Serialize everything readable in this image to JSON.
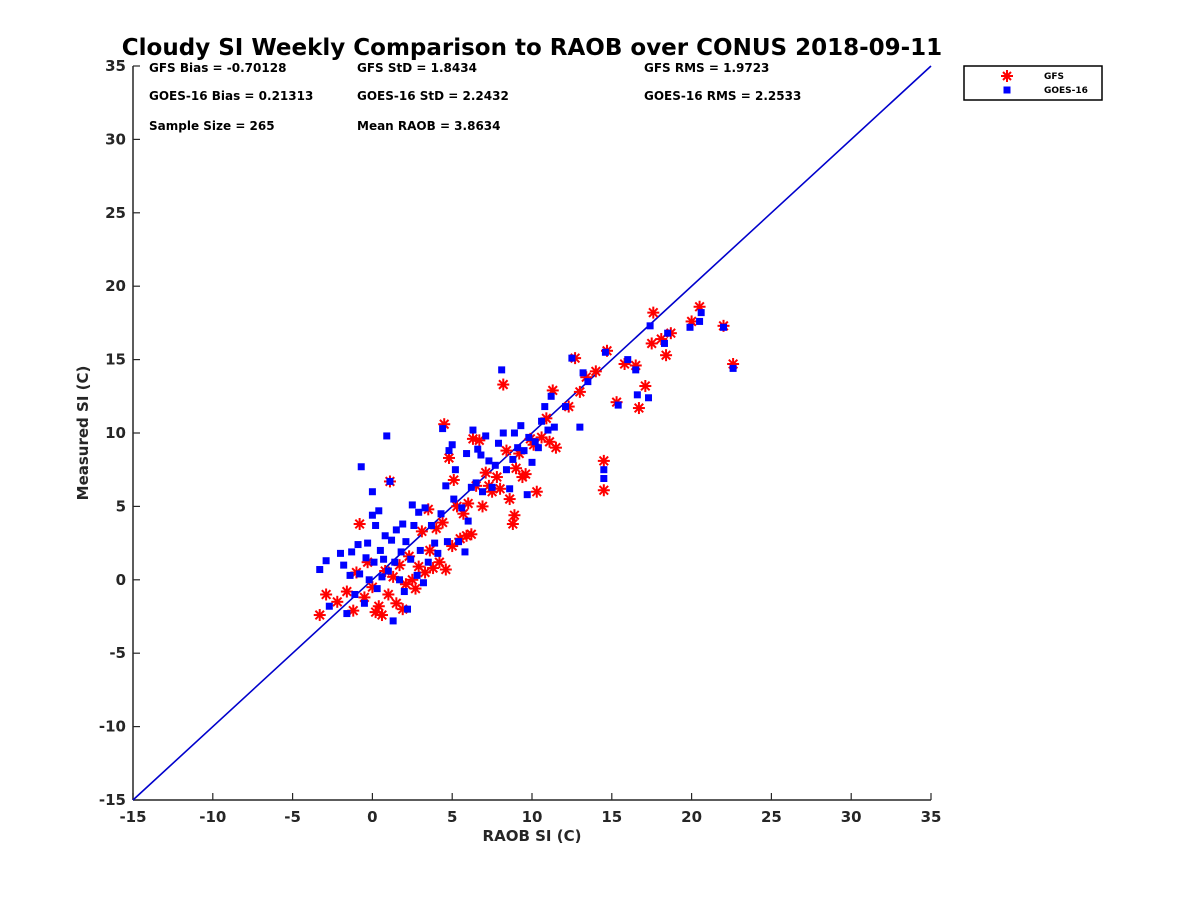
{
  "chart_data": {
    "type": "scatter",
    "title": "Cloudy SI Weekly Comparison to RAOB over CONUS 2018-09-11",
    "xlabel": "RAOB SI (C)",
    "ylabel": "Measured SI (C)",
    "xlim": [
      -15,
      35
    ],
    "ylim": [
      -15,
      35
    ],
    "x_ticks": [
      -15,
      -10,
      -5,
      0,
      5,
      10,
      15,
      20,
      25,
      30,
      35
    ],
    "y_ticks": [
      -15,
      -10,
      -5,
      0,
      5,
      10,
      15,
      20,
      25,
      30,
      35
    ],
    "x_tick_labels": [
      "-15",
      "-10",
      "-5",
      "0",
      "5",
      "10",
      "15",
      "20",
      "25",
      "30",
      "35"
    ],
    "y_tick_labels": [
      "-15",
      "-10",
      "-5",
      "0",
      "5",
      "10",
      "15",
      "20",
      "25",
      "30",
      "35"
    ],
    "grid": false,
    "legend_position": "top-right outside",
    "reference_line": {
      "name": "1:1 line",
      "x": [
        -15,
        35
      ],
      "y": [
        -15,
        35
      ],
      "color": "#0000cc"
    },
    "stats": {
      "gfs_bias": "GFS Bias = -0.70128",
      "gfs_std": "GFS StD = 1.8434",
      "gfs_rms": "GFS RMS = 1.9723",
      "goes_bias": "GOES-16 Bias = 0.21313",
      "goes_std": "GOES-16 StD = 2.2432",
      "goes_rms": "GOES-16 RMS = 2.2533",
      "sample_size": "Sample Size = 265",
      "mean_raob": "Mean RAOB = 3.8634"
    },
    "series": [
      {
        "name": "GFS",
        "marker": "asterisk",
        "color": "#ff0000",
        "points": [
          [
            -3.3,
            -2.4
          ],
          [
            -2.9,
            -1.0
          ],
          [
            -2.2,
            -1.5
          ],
          [
            -1.6,
            -0.8
          ],
          [
            -1.2,
            -2.1
          ],
          [
            -1.0,
            0.5
          ],
          [
            -0.8,
            3.8
          ],
          [
            -0.5,
            -1.2
          ],
          [
            -0.3,
            1.2
          ],
          [
            0.0,
            -0.5
          ],
          [
            0.2,
            -2.2
          ],
          [
            0.4,
            -1.8
          ],
          [
            0.6,
            -2.4
          ],
          [
            0.8,
            0.6
          ],
          [
            1.0,
            -1.0
          ],
          [
            1.1,
            6.7
          ],
          [
            1.3,
            0.2
          ],
          [
            1.5,
            -1.6
          ],
          [
            1.7,
            1.0
          ],
          [
            1.9,
            -2.0
          ],
          [
            2.1,
            -0.3
          ],
          [
            2.3,
            1.6
          ],
          [
            2.5,
            0.0
          ],
          [
            2.7,
            -0.6
          ],
          [
            2.9,
            0.9
          ],
          [
            3.1,
            3.3
          ],
          [
            3.3,
            0.5
          ],
          [
            3.5,
            4.8
          ],
          [
            3.6,
            2.0
          ],
          [
            3.8,
            0.8
          ],
          [
            4.0,
            3.5
          ],
          [
            4.2,
            1.2
          ],
          [
            4.4,
            3.9
          ],
          [
            4.5,
            10.6
          ],
          [
            4.6,
            0.7
          ],
          [
            4.8,
            8.3
          ],
          [
            5.0,
            2.3
          ],
          [
            5.1,
            6.8
          ],
          [
            5.3,
            5.0
          ],
          [
            5.5,
            2.8
          ],
          [
            5.7,
            4.5
          ],
          [
            5.9,
            3.0
          ],
          [
            6.0,
            5.2
          ],
          [
            6.2,
            3.1
          ],
          [
            6.3,
            9.6
          ],
          [
            6.5,
            6.4
          ],
          [
            6.7,
            9.5
          ],
          [
            6.9,
            5.0
          ],
          [
            7.1,
            7.3
          ],
          [
            7.3,
            6.4
          ],
          [
            7.5,
            6.0
          ],
          [
            7.8,
            7.0
          ],
          [
            8.0,
            6.2
          ],
          [
            8.2,
            13.3
          ],
          [
            8.4,
            8.8
          ],
          [
            8.6,
            5.5
          ],
          [
            8.8,
            3.8
          ],
          [
            8.9,
            4.4
          ],
          [
            9.0,
            7.6
          ],
          [
            9.2,
            8.6
          ],
          [
            9.4,
            7.0
          ],
          [
            9.6,
            7.2
          ],
          [
            9.9,
            9.6
          ],
          [
            10.1,
            9.2
          ],
          [
            10.3,
            6.0
          ],
          [
            10.6,
            9.7
          ],
          [
            10.9,
            11.0
          ],
          [
            11.1,
            9.4
          ],
          [
            11.3,
            12.9
          ],
          [
            11.5,
            9.0
          ],
          [
            12.3,
            11.8
          ],
          [
            12.7,
            15.1
          ],
          [
            13.0,
            12.8
          ],
          [
            13.4,
            13.8
          ],
          [
            14.0,
            14.2
          ],
          [
            14.5,
            8.1
          ],
          [
            14.5,
            6.1
          ],
          [
            14.7,
            15.6
          ],
          [
            15.3,
            12.1
          ],
          [
            15.8,
            14.7
          ],
          [
            16.5,
            14.6
          ],
          [
            16.7,
            11.7
          ],
          [
            17.1,
            13.2
          ],
          [
            17.5,
            16.1
          ],
          [
            17.6,
            18.2
          ],
          [
            18.1,
            16.4
          ],
          [
            18.4,
            15.3
          ],
          [
            18.7,
            16.8
          ],
          [
            20.0,
            17.6
          ],
          [
            20.5,
            18.6
          ],
          [
            22.0,
            17.3
          ],
          [
            22.6,
            14.7
          ]
        ]
      },
      {
        "name": "GOES-16",
        "marker": "square",
        "color": "#0000ff",
        "points": [
          [
            -3.3,
            0.7
          ],
          [
            -2.9,
            1.3
          ],
          [
            -2.7,
            -1.8
          ],
          [
            -2.0,
            1.8
          ],
          [
            -1.8,
            1.0
          ],
          [
            -1.6,
            -2.3
          ],
          [
            -1.4,
            0.3
          ],
          [
            -1.3,
            1.9
          ],
          [
            -1.1,
            -1.0
          ],
          [
            -0.9,
            2.4
          ],
          [
            -0.8,
            0.4
          ],
          [
            -0.7,
            7.7
          ],
          [
            -0.5,
            -1.6
          ],
          [
            -0.4,
            1.5
          ],
          [
            -0.3,
            2.5
          ],
          [
            -0.2,
            0.0
          ],
          [
            0.0,
            4.4
          ],
          [
            0.0,
            6.0
          ],
          [
            0.1,
            1.2
          ],
          [
            0.2,
            3.7
          ],
          [
            0.3,
            -0.6
          ],
          [
            0.4,
            4.7
          ],
          [
            0.5,
            2.0
          ],
          [
            0.6,
            0.2
          ],
          [
            0.7,
            1.4
          ],
          [
            0.8,
            3.0
          ],
          [
            0.9,
            9.8
          ],
          [
            1.0,
            0.6
          ],
          [
            1.1,
            6.7
          ],
          [
            1.2,
            2.7
          ],
          [
            1.3,
            -2.8
          ],
          [
            1.4,
            1.2
          ],
          [
            1.5,
            3.4
          ],
          [
            1.7,
            0.0
          ],
          [
            1.8,
            1.9
          ],
          [
            1.9,
            3.8
          ],
          [
            2.0,
            -0.8
          ],
          [
            2.1,
            2.6
          ],
          [
            2.2,
            -2.0
          ],
          [
            2.4,
            1.4
          ],
          [
            2.5,
            5.1
          ],
          [
            2.6,
            3.7
          ],
          [
            2.8,
            0.3
          ],
          [
            2.9,
            4.6
          ],
          [
            3.0,
            2.0
          ],
          [
            3.2,
            -0.2
          ],
          [
            3.3,
            4.9
          ],
          [
            3.5,
            1.2
          ],
          [
            3.7,
            3.7
          ],
          [
            3.9,
            2.5
          ],
          [
            4.1,
            1.8
          ],
          [
            4.3,
            4.5
          ],
          [
            4.4,
            10.3
          ],
          [
            4.6,
            6.4
          ],
          [
            4.7,
            2.6
          ],
          [
            4.8,
            8.8
          ],
          [
            5.0,
            9.2
          ],
          [
            5.1,
            5.5
          ],
          [
            5.2,
            7.5
          ],
          [
            5.4,
            2.6
          ],
          [
            5.6,
            4.9
          ],
          [
            5.8,
            1.9
          ],
          [
            5.9,
            8.6
          ],
          [
            6.0,
            4.0
          ],
          [
            6.2,
            6.3
          ],
          [
            6.3,
            10.2
          ],
          [
            6.5,
            6.6
          ],
          [
            6.6,
            8.9
          ],
          [
            6.8,
            8.5
          ],
          [
            6.9,
            6.0
          ],
          [
            7.1,
            9.8
          ],
          [
            7.3,
            8.1
          ],
          [
            7.5,
            6.3
          ],
          [
            7.7,
            7.8
          ],
          [
            7.9,
            9.3
          ],
          [
            8.1,
            14.3
          ],
          [
            8.2,
            10.0
          ],
          [
            8.4,
            7.5
          ],
          [
            8.6,
            6.2
          ],
          [
            8.8,
            8.2
          ],
          [
            8.9,
            10.0
          ],
          [
            9.1,
            9.0
          ],
          [
            9.3,
            10.5
          ],
          [
            9.5,
            8.8
          ],
          [
            9.7,
            5.8
          ],
          [
            9.8,
            9.7
          ],
          [
            10.0,
            8.0
          ],
          [
            10.2,
            9.4
          ],
          [
            10.4,
            9.0
          ],
          [
            10.6,
            10.8
          ],
          [
            10.8,
            11.8
          ],
          [
            11.0,
            10.2
          ],
          [
            11.2,
            12.5
          ],
          [
            11.4,
            10.4
          ],
          [
            12.1,
            11.8
          ],
          [
            12.5,
            15.1
          ],
          [
            13.0,
            10.4
          ],
          [
            13.2,
            14.1
          ],
          [
            13.5,
            13.5
          ],
          [
            14.5,
            7.5
          ],
          [
            14.5,
            6.9
          ],
          [
            14.6,
            15.5
          ],
          [
            15.4,
            11.9
          ],
          [
            16.0,
            15.0
          ],
          [
            16.5,
            14.3
          ],
          [
            16.6,
            12.6
          ],
          [
            17.3,
            12.4
          ],
          [
            17.4,
            17.3
          ],
          [
            18.3,
            16.1
          ],
          [
            18.5,
            16.8
          ],
          [
            19.9,
            17.2
          ],
          [
            20.5,
            17.6
          ],
          [
            20.6,
            18.2
          ],
          [
            22.0,
            17.2
          ],
          [
            22.6,
            14.4
          ]
        ]
      }
    ]
  }
}
